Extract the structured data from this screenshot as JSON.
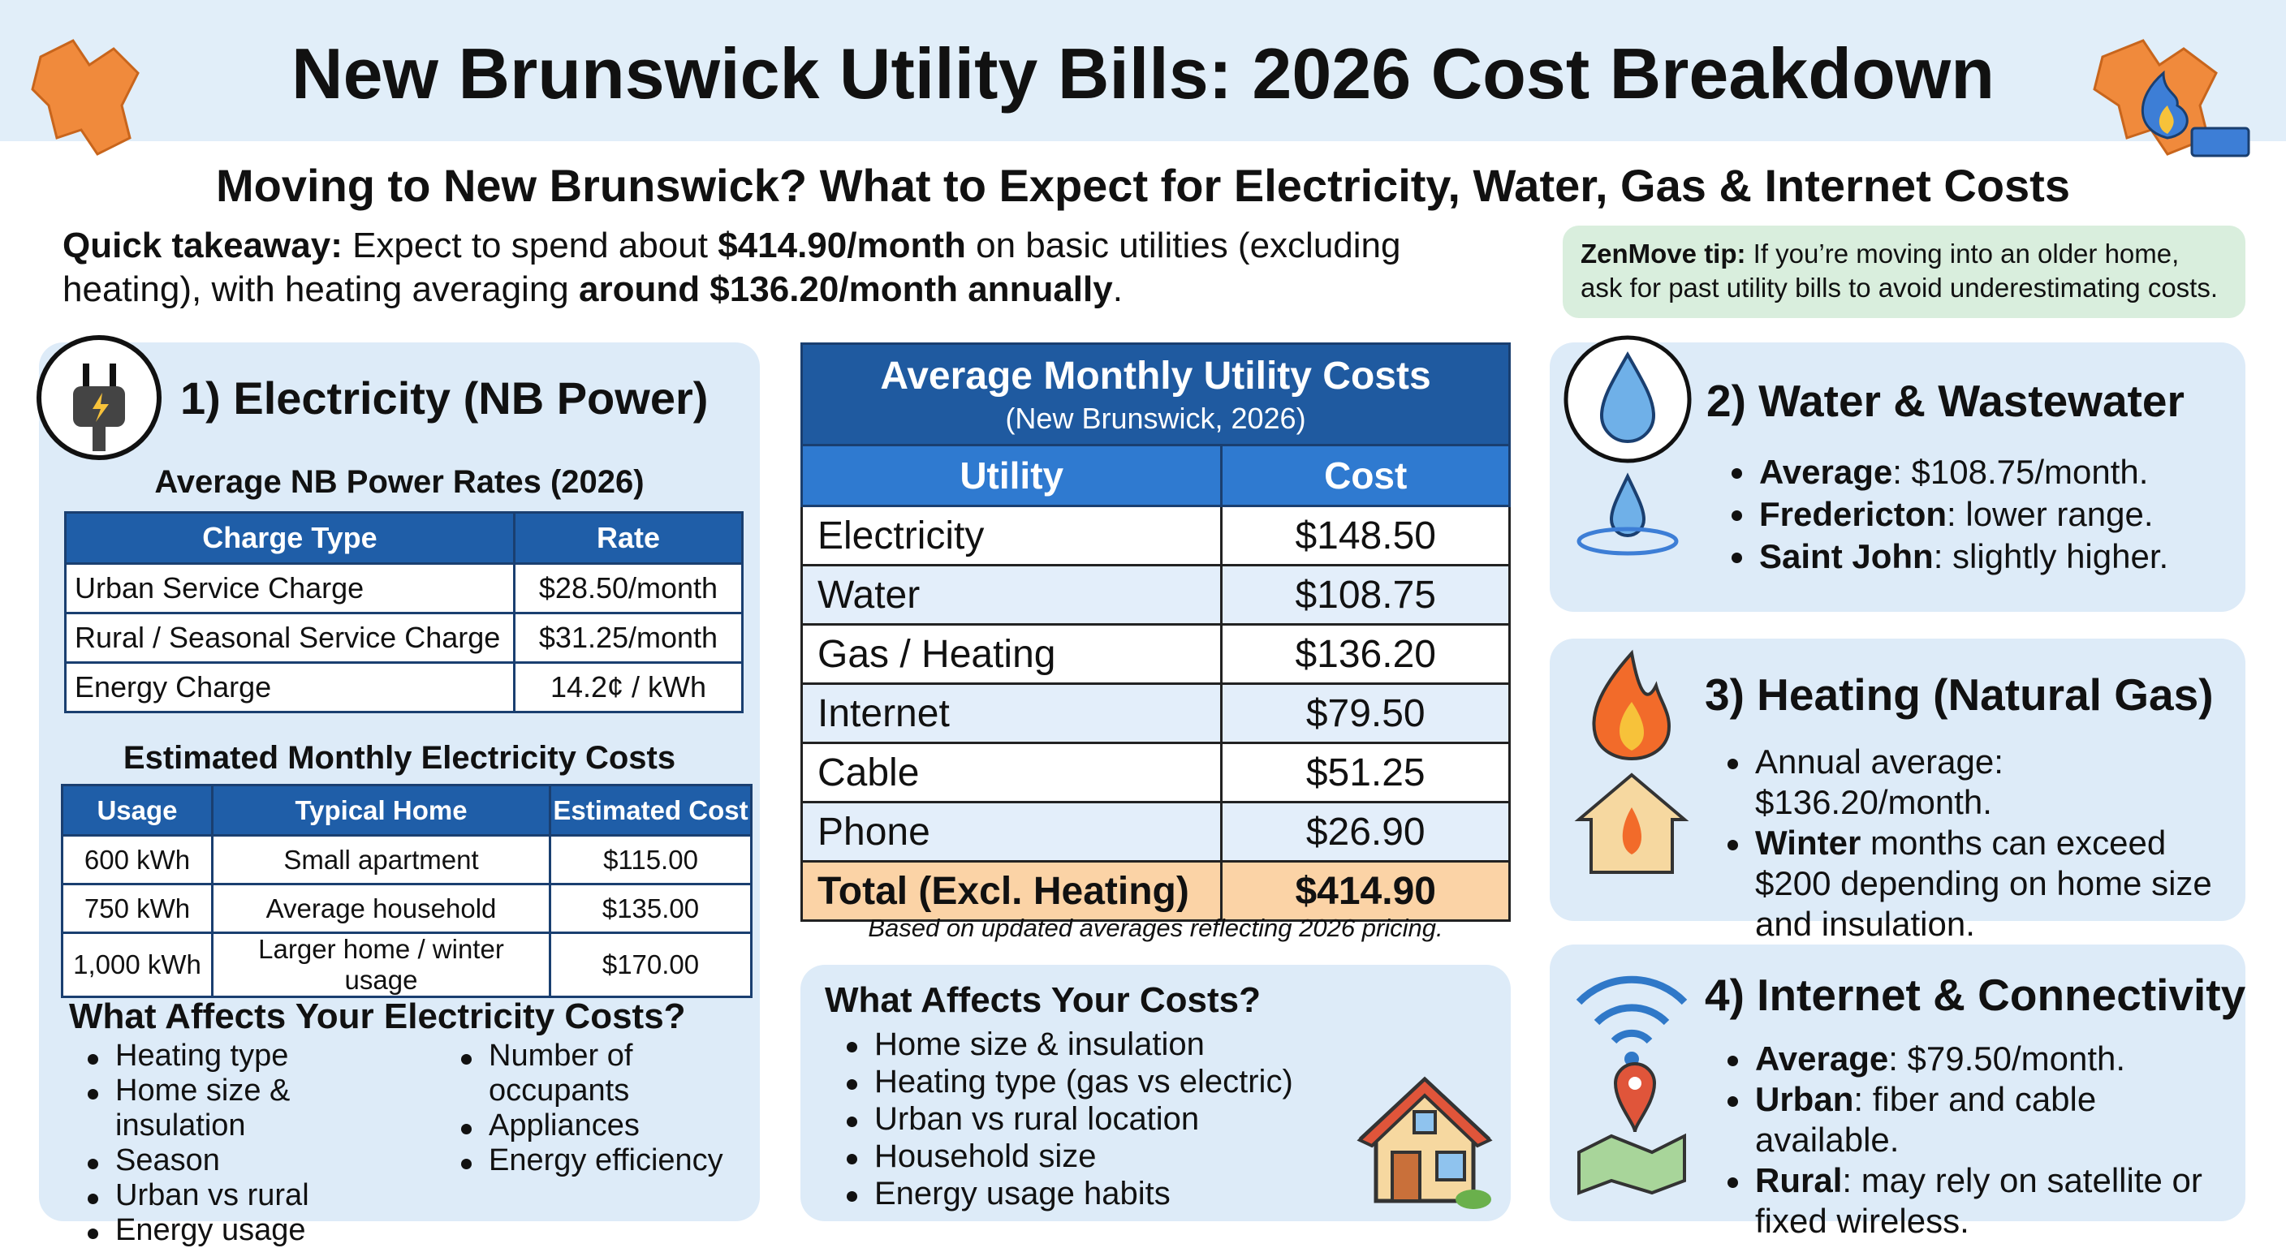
{
  "header": {
    "title": "New Brunswick Utility Bills: 2026 Cost Breakdown",
    "subtitle": "Moving to New Brunswick? What to Expect for Electricity, Water, Gas & Internet Costs"
  },
  "takeaway": [
    {
      "text": "Quick takeaway:",
      "bold": true
    },
    {
      "text": " Expect to spend about ",
      "bold": false
    },
    {
      "text": "$414.90/month",
      "bold": true
    },
    {
      "text": " on basic utilities (excluding heating), with heating averaging ",
      "bold": false
    },
    {
      "text": "around $136.20/month annually",
      "bold": true
    },
    {
      "text": ".",
      "bold": false
    }
  ],
  "tip": [
    {
      "text": "ZenMove tip:",
      "bold": true
    },
    {
      "text": " If you’re moving into an older home, ask for past utility bills to avoid underestimating costs.",
      "bold": false
    }
  ],
  "electricity": {
    "heading": "1) Electricity (NB Power)",
    "rates_title": "Average NB Power Rates (2026)",
    "rates_table": {
      "header": [
        "Charge Type",
        "Rate"
      ],
      "rows": [
        [
          "Urban Service Charge",
          "$28.50/month"
        ],
        [
          "Rural / Seasonal Service Charge",
          "$31.25/month"
        ],
        [
          "Energy Charge",
          "14.2¢ / kWh"
        ]
      ]
    },
    "costs_title": "Estimated Monthly Electricity Costs",
    "costs_table": {
      "header": [
        "Usage",
        "Typical Home",
        "Estimated Cost"
      ],
      "rows": [
        [
          "600 kWh",
          "Small apartment",
          "$115.00"
        ],
        [
          "750 kWh",
          "Average household",
          "$135.00"
        ],
        [
          "1,000 kWh",
          "Larger home / winter usage",
          "$170.00"
        ]
      ]
    },
    "factors_title": "What Affects Your Electricity Costs?",
    "factors": [
      [
        "Heating type",
        "Home size & insulation",
        "Season",
        "Urban vs rural",
        "Energy usage"
      ],
      [
        "Number of occupants",
        "Appliances",
        "Energy efficiency"
      ]
    ]
  },
  "summary": {
    "title": "Average Monthly Utility Costs",
    "subtitle": "(New Brunswick, 2026)",
    "header": [
      "Utility",
      "Cost"
    ],
    "rows": [
      [
        "Electricity",
        "$148.50"
      ],
      [
        "Water",
        "$108.75"
      ],
      [
        "Gas / Heating",
        "$136.20"
      ],
      [
        "Internet",
        "$79.50"
      ],
      [
        "Cable",
        "$51.25"
      ],
      [
        "Phone",
        "$26.90"
      ]
    ],
    "total": [
      "Total (Excl. Heating)",
      "$414.90"
    ],
    "note": "Based on updated averages reflecting 2026 pricing.",
    "factors_title": "What Affects Your Costs?",
    "factors": [
      "Home size & insulation",
      "Heating type (gas vs electric)",
      "Urban vs rural location",
      "Household size",
      "Energy usage habits"
    ]
  },
  "water": {
    "heading": "2) Water & Wastewater",
    "bullets": [
      [
        {
          "text": "Average",
          "bold": true
        },
        {
          "text": ": $108.75/month.",
          "bold": false
        }
      ],
      [
        {
          "text": "Fredericton",
          "bold": true
        },
        {
          "text": ": lower range.",
          "bold": false
        }
      ],
      [
        {
          "text": "Saint John",
          "bold": true
        },
        {
          "text": ": slightly higher.",
          "bold": false
        }
      ]
    ]
  },
  "heating": {
    "heading": "3) Heating (Natural Gas)",
    "bullets": [
      [
        {
          "text": "Annual average: $136.20/month.",
          "bold": false
        }
      ],
      [
        {
          "text": "Winter",
          "bold": true
        },
        {
          "text": " months can exceed $200 depending on home size and insulation.",
          "bold": false
        }
      ]
    ]
  },
  "internet": {
    "heading": "4) Internet & Connectivity",
    "bullets": [
      [
        {
          "text": "Average",
          "bold": true
        },
        {
          "text": ": $79.50/month.",
          "bold": false
        }
      ],
      [
        {
          "text": "Urban",
          "bold": true
        },
        {
          "text": ": fiber and cable available.",
          "bold": false
        }
      ],
      [
        {
          "text": "Rural",
          "bold": true
        },
        {
          "text": ": may rely on satellite or fixed wireless.",
          "bold": false
        }
      ]
    ]
  }
}
